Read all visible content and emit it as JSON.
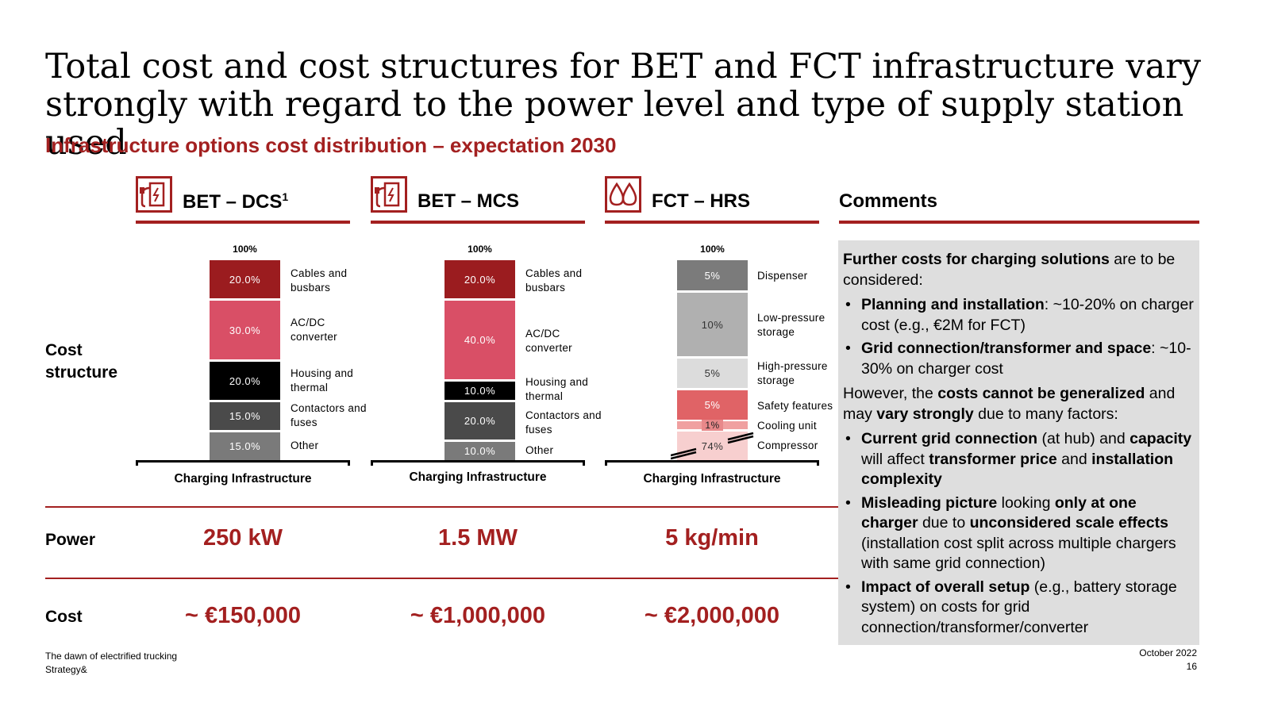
{
  "title": "Total cost and cost structures for BET and FCT infrastructure vary strongly with regard to the power level and type of supply station used",
  "subtitle": "Infrastructure options cost distribution – expectation 2030",
  "columns": [
    {
      "name": "BET – DCS",
      "sup": "1",
      "icon": "ev-charger-icon"
    },
    {
      "name": "BET – MCS",
      "sup": "",
      "icon": "ev-charger-icon"
    },
    {
      "name": "FCT – HRS",
      "sup": "",
      "icon": "hydrogen-drops-icon"
    }
  ],
  "comments_header": "Comments",
  "row_labels": {
    "cost_structure": "Cost structure",
    "power": "Power",
    "cost": "Cost"
  },
  "chart_data": [
    {
      "type": "bar",
      "title": "BET – DCS",
      "top_label": "100%",
      "axis_label": "Charging Infrastructure",
      "series": [
        {
          "name": "Cables and busbars",
          "value": 20.0,
          "label": "20.0%",
          "color": "#9b1c1f"
        },
        {
          "name": "AC/DC converter",
          "value": 30.0,
          "label": "30.0%",
          "color": "#d94f66"
        },
        {
          "name": "Housing and thermal",
          "value": 20.0,
          "label": "20.0%",
          "color": "#000000"
        },
        {
          "name": "Contactors and fuses",
          "value": 15.0,
          "label": "15.0%",
          "color": "#4a4a4a"
        },
        {
          "name": "Other",
          "value": 15.0,
          "label": "15.0%",
          "color": "#7a7a7a"
        }
      ]
    },
    {
      "type": "bar",
      "title": "BET – MCS",
      "top_label": "100%",
      "axis_label": "Charging Infrastructure",
      "series": [
        {
          "name": "Cables and busbars",
          "value": 20.0,
          "label": "20.0%",
          "color": "#9b1c1f"
        },
        {
          "name": "AC/DC converter",
          "value": 40.0,
          "label": "40.0%",
          "color": "#d94f66"
        },
        {
          "name": "Housing and thermal",
          "value": 10.0,
          "label": "10.0%",
          "color": "#000000"
        },
        {
          "name": "Contactors and fuses",
          "value": 20.0,
          "label": "20.0%",
          "color": "#4a4a4a"
        },
        {
          "name": "Other",
          "value": 10.0,
          "label": "10.0%",
          "color": "#7a7a7a"
        }
      ]
    },
    {
      "type": "bar",
      "title": "FCT – HRS",
      "top_label": "100%",
      "axis_label": "Charging Infrastructure",
      "broken_axis": true,
      "series": [
        {
          "name": "Dispenser",
          "value": 5,
          "label": "5%",
          "color": "#7b7b7b"
        },
        {
          "name": "Low-pressure storage",
          "value": 10,
          "label": "10%",
          "color": "#b0b0b0"
        },
        {
          "name": "High-pressure storage",
          "value": 5,
          "label": "5%",
          "color": "#dcdcdc"
        },
        {
          "name": "Safety features",
          "value": 5,
          "label": "5%",
          "color": "#e06366"
        },
        {
          "name": "Cooling unit",
          "value": 1,
          "label": "1%",
          "color": "#f0a0a0"
        },
        {
          "name": "Compressor",
          "value": 74,
          "label": "74%",
          "color": "#f7cfcf"
        }
      ]
    }
  ],
  "power": [
    "250 kW",
    "1.5 MW",
    "5 kg/min"
  ],
  "cost": [
    "~ €150,000",
    "~ €1,000,000",
    "~ €2,000,000"
  ],
  "comments": {
    "intro_bold": "Further costs for charging solutions",
    "intro_rest": " are to be considered:",
    "bullets1": [
      {
        "bold": "Planning and installation",
        "rest": ": ~10-20% on charger cost (e.g., €2M for FCT)"
      },
      {
        "bold": "Grid connection/transformer and space",
        "rest": ": ~10-30% on charger cost"
      }
    ],
    "p2_a": "However, the ",
    "p2_b": "costs cannot be generalized",
    "p2_c": " and may ",
    "p2_d": "vary strongly",
    "p2_e": " due to many factors:",
    "b3_1": "Current grid connection",
    "b3_2": " (at hub) and ",
    "b3_3": "capacity",
    "b3_4": " will affect ",
    "b3_5": "transformer price",
    "b3_6": " and ",
    "b3_7": "installation complexity",
    "b4_1": "Misleading picture",
    "b4_2": " looking ",
    "b4_3": "only at one charger",
    "b4_4": " due to ",
    "b4_5": "unconsidered scale effects",
    "b4_6": " (installation cost split across multiple chargers with same grid connection)",
    "b5_1": "Impact of overall setup",
    "b5_2": " (e.g., battery storage system) on costs for grid connection/transformer/converter"
  },
  "footer": {
    "left1": "The dawn of electrified trucking",
    "left2": "Strategy&",
    "date": "October 2022",
    "page": "16"
  }
}
